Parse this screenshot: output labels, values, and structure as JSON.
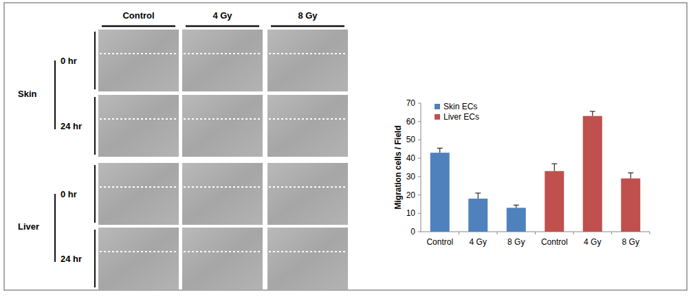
{
  "micrograph_panel": {
    "columns": [
      "Control",
      "4 Gy",
      "8 Gy"
    ],
    "groups": [
      {
        "label": "Skin",
        "times": [
          "0 hr",
          "24 hr"
        ]
      },
      {
        "label": "Liver",
        "times": [
          "0 hr",
          "24 hr"
        ]
      }
    ]
  },
  "chart_data": {
    "type": "bar",
    "y_label": "Migration cells / Field",
    "categories": [
      "Control",
      "4 Gy",
      "8 Gy",
      "Control",
      "4 Gy",
      "8 Gy"
    ],
    "series": [
      {
        "name": "Skin ECs",
        "color": "#4f81bd",
        "values": [
          43,
          18,
          13,
          null,
          null,
          null
        ],
        "errors": [
          2.5,
          3,
          1.5,
          null,
          null,
          null
        ]
      },
      {
        "name": "Liver ECs",
        "color": "#c0504d",
        "values": [
          null,
          null,
          null,
          33,
          63,
          29
        ],
        "errors": [
          null,
          null,
          null,
          4,
          2.5,
          3
        ]
      }
    ],
    "ylim": [
      0,
      70
    ],
    "yticks": [
      0,
      10,
      20,
      30,
      40,
      50,
      60,
      70
    ],
    "grid": false,
    "legend": "upper-left"
  }
}
